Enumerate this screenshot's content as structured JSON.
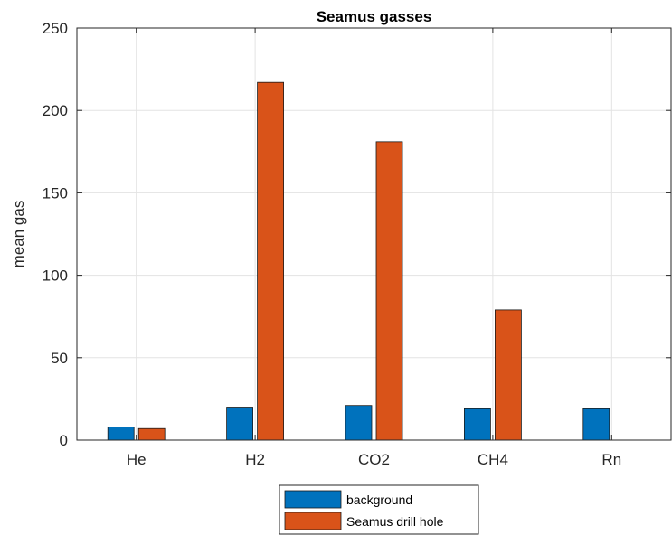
{
  "chart_data": {
    "type": "bar",
    "title": "Seamus gasses",
    "xlabel": "",
    "ylabel": "mean gas",
    "categories": [
      "He",
      "H2",
      "CO2",
      "CH4",
      "Rn"
    ],
    "ylim": [
      0,
      250
    ],
    "yticks": [
      0,
      50,
      100,
      150,
      200,
      250
    ],
    "grid": true,
    "legend_position": "bottom",
    "series": [
      {
        "name": "background",
        "color": "#0072BD",
        "values": [
          8,
          20,
          21,
          19,
          19
        ]
      },
      {
        "name": "Seamus drill hole",
        "color": "#D95319",
        "values": [
          7,
          217,
          181,
          79,
          0
        ]
      }
    ]
  }
}
